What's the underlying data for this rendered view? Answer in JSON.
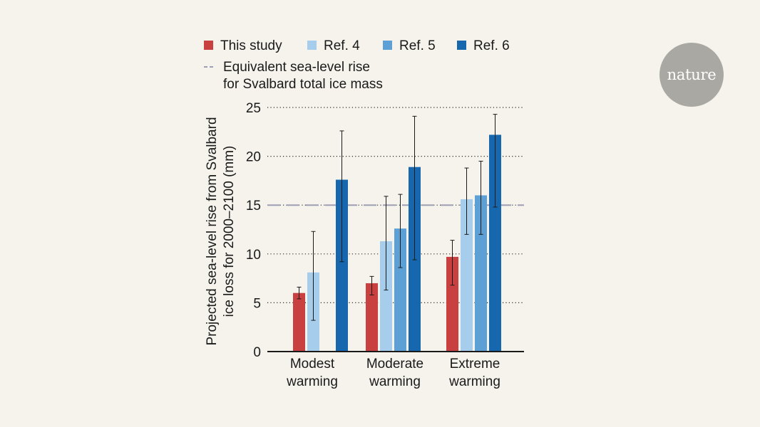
{
  "brand": {
    "logo_text": "nature"
  },
  "chart_data": {
    "type": "bar",
    "categories": [
      [
        "Modest",
        "warming"
      ],
      [
        "Moderate",
        "warming"
      ],
      [
        "Extreme",
        "warming"
      ]
    ],
    "series": [
      {
        "name": "This study",
        "color": "#c94040",
        "values": [
          6.0,
          7.0,
          9.7
        ],
        "err_low": [
          5.4,
          5.8,
          6.8
        ],
        "err_high": [
          6.6,
          7.7,
          11.4
        ]
      },
      {
        "name": "Ref. 4",
        "color": "#a6cdec",
        "values": [
          8.1,
          11.3,
          15.6
        ],
        "err_low": [
          3.2,
          6.3,
          12.0
        ],
        "err_high": [
          12.3,
          15.9,
          18.8
        ]
      },
      {
        "name": "Ref. 5",
        "color": "#5ca0d5",
        "values": [
          0,
          12.6,
          16.0
        ],
        "err_low": [
          null,
          8.6,
          12.0
        ],
        "err_high": [
          null,
          16.1,
          19.5
        ]
      },
      {
        "name": "Ref. 6",
        "color": "#1667ad",
        "values": [
          17.6,
          18.9,
          22.2
        ],
        "err_low": [
          9.2,
          9.4,
          14.8
        ],
        "err_high": [
          22.6,
          24.1,
          24.3
        ]
      }
    ],
    "reference_line": {
      "label": [
        "Equivalent sea-level rise",
        "for Svalbard total ice mass"
      ],
      "value": 15,
      "color": "#9e9eb4"
    },
    "ylabel": [
      "Projected sea-level rise from Svalbard",
      "ice loss for 2000–2100 (mm)"
    ],
    "xlabel": "",
    "ylim": [
      0,
      25
    ],
    "yticks": [
      0,
      5,
      10,
      15,
      20,
      25
    ],
    "grid": true,
    "legend_position": "top"
  }
}
